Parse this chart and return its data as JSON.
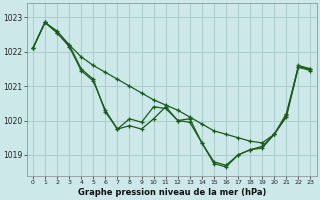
{
  "title": "Graphe pression niveau de la mer (hPa)",
  "background_color": "#cce8e8",
  "grid_color": "#aacccc",
  "line_color": "#1a5c1a",
  "xlim": [
    -0.5,
    23.5
  ],
  "ylim": [
    1018.4,
    1023.4
  ],
  "yticks": [
    1019,
    1020,
    1021,
    1022,
    1023
  ],
  "xticks": [
    0,
    1,
    2,
    3,
    4,
    5,
    6,
    7,
    8,
    9,
    10,
    11,
    12,
    13,
    14,
    15,
    16,
    17,
    18,
    19,
    20,
    21,
    22,
    23
  ],
  "series": [
    {
      "x": [
        0,
        1,
        2,
        3,
        4,
        5,
        6,
        7,
        8,
        9,
        10,
        11,
        12,
        13,
        14,
        15,
        16,
        17,
        18,
        19,
        20,
        21,
        22,
        23
      ],
      "y": [
        1022.1,
        1022.85,
        1022.6,
        1022.2,
        1021.85,
        1021.6,
        1021.4,
        1021.2,
        1021.0,
        1020.8,
        1020.6,
        1020.45,
        1020.3,
        1020.1,
        1019.9,
        1019.7,
        1019.6,
        1019.5,
        1019.4,
        1019.35,
        1019.6,
        1020.1,
        1021.55,
        1021.5
      ]
    },
    {
      "x": [
        0,
        1,
        2,
        3,
        4,
        5,
        6,
        7,
        8,
        9,
        10,
        11,
        12,
        13,
        14,
        15,
        16,
        17,
        18,
        19,
        20,
        21,
        22,
        23
      ],
      "y": [
        1022.1,
        1022.85,
        1022.55,
        1022.15,
        1021.45,
        1021.15,
        1020.3,
        1019.75,
        1020.05,
        1019.95,
        1020.4,
        1020.35,
        1020.0,
        1019.95,
        1019.35,
        1018.8,
        1018.7,
        1019.0,
        1019.15,
        1019.2,
        1019.6,
        1020.2,
        1021.55,
        1021.45
      ]
    },
    {
      "x": [
        0,
        1,
        2,
        3,
        4,
        5,
        6,
        7,
        8,
        9,
        10,
        11,
        12,
        13,
        14,
        15,
        16,
        17,
        18,
        19,
        20,
        21,
        22,
        23
      ],
      "y": [
        1022.1,
        1022.85,
        1022.55,
        1022.2,
        1021.5,
        1021.2,
        1020.25,
        1019.75,
        1019.85,
        1019.75,
        1020.05,
        1020.4,
        1020.0,
        1020.05,
        1019.35,
        1018.75,
        1018.65,
        1019.0,
        1019.15,
        1019.25,
        1019.6,
        1020.15,
        1021.6,
        1021.5
      ]
    }
  ]
}
